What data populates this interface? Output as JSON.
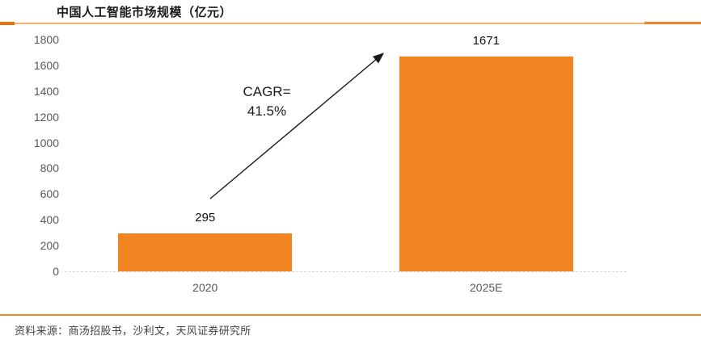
{
  "title": "中国人工智能市场规模（亿元）",
  "source": "资料来源：商汤招股书，沙利文，天风证券研究所",
  "colors": {
    "bar": "#f28422",
    "accent_dark": "#e8720c",
    "accent_light": "#f7b26c",
    "axis_text": "#595959",
    "arrow": "#1a1a1a"
  },
  "chart_data": {
    "type": "bar",
    "title": "中国人工智能市场规模（亿元）",
    "categories": [
      "2020",
      "2025E"
    ],
    "values": [
      295,
      1671
    ],
    "data_labels": [
      "295",
      "1671"
    ],
    "ylim": [
      0,
      1800
    ],
    "yticks": [
      0,
      200,
      400,
      600,
      800,
      1000,
      1200,
      1400,
      1600,
      1800
    ],
    "grid": false,
    "legend": null,
    "annotation": {
      "lines": [
        "CAGR=",
        "41.5%"
      ]
    }
  }
}
